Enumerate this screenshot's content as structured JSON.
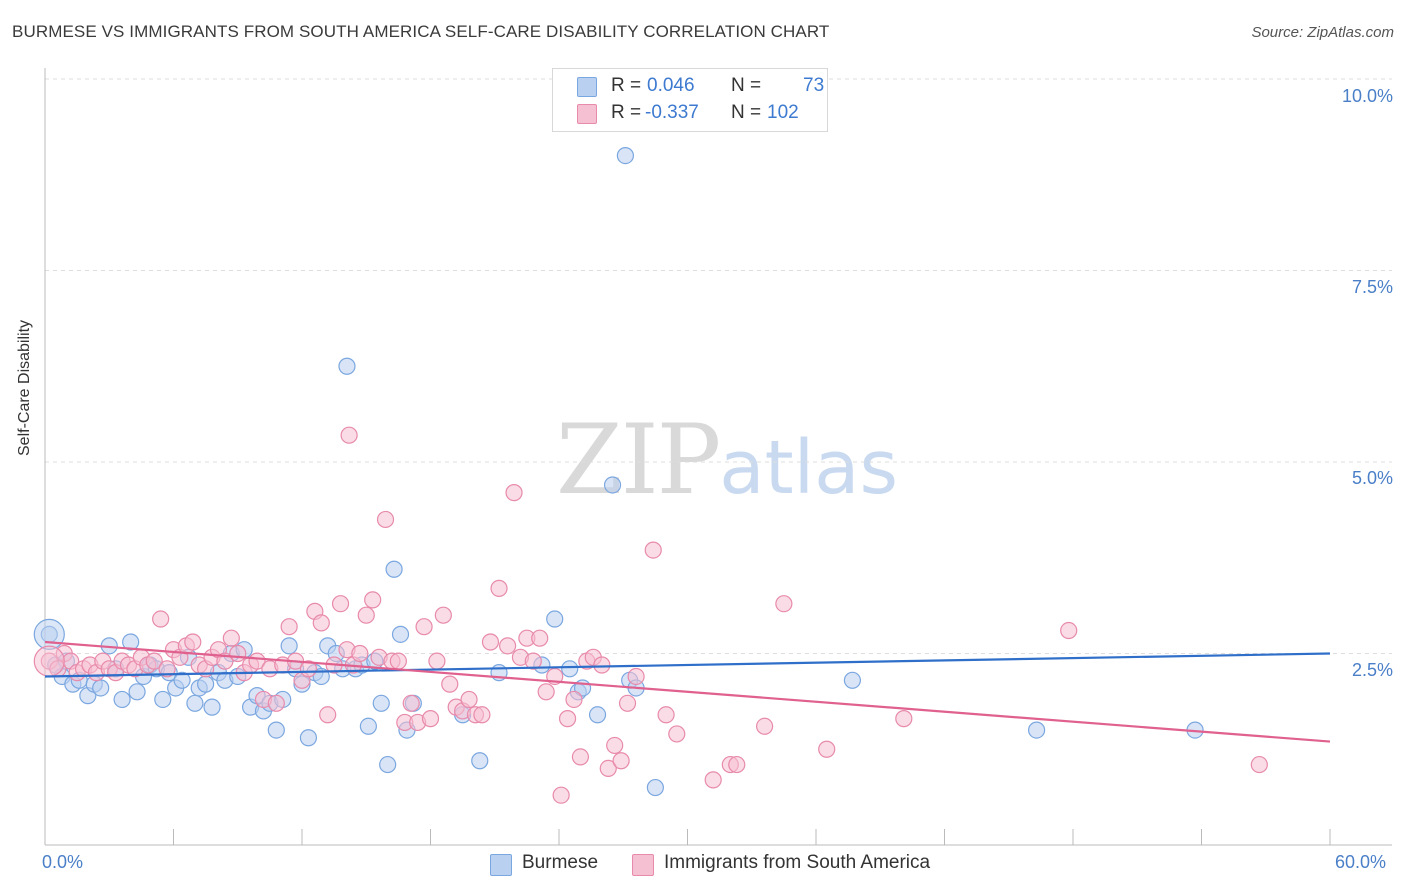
{
  "title": "BURMESE VS IMMIGRANTS FROM SOUTH AMERICA SELF-CARE DISABILITY CORRELATION CHART",
  "source": "Source: ZipAtlas.com",
  "watermark": {
    "zip": "ZIP",
    "atlas": "atlas"
  },
  "colors": {
    "blue": "#7ba7e0",
    "blue_fill": "#b9d0f0",
    "blue_line": "#2f6fc9",
    "pink": "#e88aab",
    "pink_fill": "#f5c0d2",
    "pink_line": "#e0608e",
    "grid": "#dddddd",
    "axis": "#bbbbbb",
    "value_text": "#3d7ad0"
  },
  "legend_top": [
    {
      "r_label": "R =",
      "r_value": "0.046",
      "n_label": "N =",
      "n_value": "73",
      "series": "blue"
    },
    {
      "r_label": "R =",
      "r_value": "-0.337",
      "n_label": "N =",
      "n_value": "102",
      "series": "pink"
    }
  ],
  "legend_bottom": [
    {
      "label": "Burmese",
      "series": "blue"
    },
    {
      "label": "Immigrants from South America",
      "series": "pink"
    }
  ],
  "y_axis_label": "Self-Care Disability",
  "y_ticks": [
    "2.5%",
    "5.0%",
    "7.5%",
    "10.0%"
  ],
  "x_ticks": [
    "0.0%",
    "60.0%"
  ],
  "chart_data": {
    "type": "scatter",
    "title": "BURMESE VS IMMIGRANTS FROM SOUTH AMERICA SELF-CARE DISABILITY CORRELATION CHART",
    "xlabel": "",
    "ylabel": "Self-Care Disability",
    "xlim": [
      0,
      60
    ],
    "ylim": [
      0,
      10
    ],
    "y_gridlines": [
      2.5,
      5.0,
      7.5,
      10.0
    ],
    "series": [
      {
        "name": "Burmese",
        "R": 0.046,
        "N": 73,
        "trend": {
          "x": [
            0,
            60
          ],
          "y": [
            2.2,
            2.5
          ]
        },
        "points": [
          [
            0.2,
            2.75
          ],
          [
            0.5,
            2.35
          ],
          [
            0.8,
            2.2
          ],
          [
            1.0,
            2.4
          ],
          [
            1.3,
            2.1
          ],
          [
            1.6,
            2.15
          ],
          [
            2.0,
            1.95
          ],
          [
            2.3,
            2.1
          ],
          [
            2.6,
            2.05
          ],
          [
            3.0,
            2.6
          ],
          [
            3.3,
            2.3
          ],
          [
            3.6,
            1.9
          ],
          [
            4.0,
            2.65
          ],
          [
            4.3,
            2.0
          ],
          [
            4.6,
            2.2
          ],
          [
            4.9,
            2.35
          ],
          [
            5.2,
            2.3
          ],
          [
            5.5,
            1.9
          ],
          [
            5.8,
            2.25
          ],
          [
            6.1,
            2.05
          ],
          [
            6.4,
            2.15
          ],
          [
            6.7,
            2.45
          ],
          [
            7.0,
            1.85
          ],
          [
            7.2,
            2.05
          ],
          [
            7.5,
            2.1
          ],
          [
            7.8,
            1.8
          ],
          [
            8.1,
            2.25
          ],
          [
            8.4,
            2.15
          ],
          [
            8.7,
            2.5
          ],
          [
            9.0,
            2.2
          ],
          [
            9.3,
            2.55
          ],
          [
            9.6,
            1.8
          ],
          [
            9.9,
            1.95
          ],
          [
            10.2,
            1.75
          ],
          [
            10.5,
            1.85
          ],
          [
            10.8,
            1.5
          ],
          [
            11.1,
            1.9
          ],
          [
            11.4,
            2.6
          ],
          [
            11.7,
            2.3
          ],
          [
            12.0,
            2.1
          ],
          [
            12.3,
            1.4
          ],
          [
            12.6,
            2.25
          ],
          [
            12.9,
            2.2
          ],
          [
            13.2,
            2.6
          ],
          [
            13.6,
            2.5
          ],
          [
            13.9,
            2.3
          ],
          [
            14.1,
            6.25
          ],
          [
            14.5,
            2.3
          ],
          [
            14.8,
            2.35
          ],
          [
            15.1,
            1.55
          ],
          [
            15.4,
            2.4
          ],
          [
            15.7,
            1.85
          ],
          [
            16.0,
            1.05
          ],
          [
            16.3,
            3.6
          ],
          [
            16.6,
            2.75
          ],
          [
            16.9,
            1.5
          ],
          [
            17.2,
            1.85
          ],
          [
            19.5,
            1.7
          ],
          [
            20.3,
            1.1
          ],
          [
            21.2,
            2.25
          ],
          [
            23.2,
            2.35
          ],
          [
            23.8,
            2.95
          ],
          [
            24.5,
            2.3
          ],
          [
            24.9,
            2.0
          ],
          [
            25.1,
            2.05
          ],
          [
            25.8,
            1.7
          ],
          [
            26.5,
            4.7
          ],
          [
            27.1,
            9.0
          ],
          [
            27.3,
            2.15
          ],
          [
            27.6,
            2.05
          ],
          [
            28.5,
            0.75
          ],
          [
            37.7,
            2.15
          ],
          [
            46.3,
            1.5
          ],
          [
            53.7,
            1.5
          ]
        ]
      },
      {
        "name": "Immigrants from South America",
        "R": -0.337,
        "N": 102,
        "trend": {
          "x": [
            0,
            60
          ],
          "y": [
            2.65,
            1.35
          ]
        },
        "points": [
          [
            0.2,
            2.4
          ],
          [
            0.6,
            2.3
          ],
          [
            0.9,
            2.5
          ],
          [
            1.2,
            2.4
          ],
          [
            1.5,
            2.25
          ],
          [
            1.8,
            2.3
          ],
          [
            2.1,
            2.35
          ],
          [
            2.4,
            2.25
          ],
          [
            2.7,
            2.4
          ],
          [
            3.0,
            2.3
          ],
          [
            3.3,
            2.25
          ],
          [
            3.6,
            2.4
          ],
          [
            3.9,
            2.35
          ],
          [
            4.2,
            2.3
          ],
          [
            4.5,
            2.45
          ],
          [
            4.8,
            2.35
          ],
          [
            5.1,
            2.4
          ],
          [
            5.4,
            2.95
          ],
          [
            5.7,
            2.3
          ],
          [
            6.0,
            2.55
          ],
          [
            6.3,
            2.45
          ],
          [
            6.6,
            2.6
          ],
          [
            6.9,
            2.65
          ],
          [
            7.2,
            2.35
          ],
          [
            7.5,
            2.3
          ],
          [
            7.8,
            2.45
          ],
          [
            8.1,
            2.55
          ],
          [
            8.4,
            2.4
          ],
          [
            8.7,
            2.7
          ],
          [
            9.0,
            2.5
          ],
          [
            9.3,
            2.25
          ],
          [
            9.6,
            2.35
          ],
          [
            9.9,
            2.4
          ],
          [
            10.2,
            1.9
          ],
          [
            10.5,
            2.3
          ],
          [
            10.8,
            1.85
          ],
          [
            11.1,
            2.35
          ],
          [
            11.4,
            2.85
          ],
          [
            11.7,
            2.4
          ],
          [
            12.0,
            2.15
          ],
          [
            12.3,
            2.3
          ],
          [
            12.6,
            3.05
          ],
          [
            12.9,
            2.9
          ],
          [
            13.2,
            1.7
          ],
          [
            13.5,
            2.35
          ],
          [
            13.8,
            3.15
          ],
          [
            14.1,
            2.55
          ],
          [
            14.2,
            5.35
          ],
          [
            14.4,
            2.35
          ],
          [
            14.7,
            2.5
          ],
          [
            15.0,
            3.0
          ],
          [
            15.3,
            3.2
          ],
          [
            15.6,
            2.45
          ],
          [
            15.9,
            4.25
          ],
          [
            16.2,
            2.4
          ],
          [
            16.5,
            2.4
          ],
          [
            16.8,
            1.6
          ],
          [
            17.1,
            1.85
          ],
          [
            17.4,
            1.6
          ],
          [
            17.7,
            2.85
          ],
          [
            18.0,
            1.65
          ],
          [
            18.3,
            2.4
          ],
          [
            18.6,
            3.0
          ],
          [
            18.9,
            2.1
          ],
          [
            19.2,
            1.8
          ],
          [
            19.5,
            1.75
          ],
          [
            19.8,
            1.9
          ],
          [
            20.1,
            1.7
          ],
          [
            20.4,
            1.7
          ],
          [
            20.8,
            2.65
          ],
          [
            21.2,
            3.35
          ],
          [
            21.6,
            2.6
          ],
          [
            21.9,
            4.6
          ],
          [
            22.2,
            2.45
          ],
          [
            22.5,
            2.7
          ],
          [
            22.8,
            2.4
          ],
          [
            23.1,
            2.7
          ],
          [
            23.4,
            2.0
          ],
          [
            23.8,
            2.2
          ],
          [
            24.1,
            0.65
          ],
          [
            24.4,
            1.65
          ],
          [
            24.7,
            1.9
          ],
          [
            25.0,
            1.15
          ],
          [
            25.3,
            2.4
          ],
          [
            25.6,
            2.45
          ],
          [
            26.0,
            2.35
          ],
          [
            26.3,
            1.0
          ],
          [
            26.6,
            1.3
          ],
          [
            26.9,
            1.1
          ],
          [
            27.2,
            1.85
          ],
          [
            27.6,
            2.2
          ],
          [
            28.4,
            3.85
          ],
          [
            29.0,
            1.7
          ],
          [
            29.5,
            1.45
          ],
          [
            31.2,
            0.85
          ],
          [
            32.0,
            1.05
          ],
          [
            32.3,
            1.05
          ],
          [
            33.6,
            1.55
          ],
          [
            34.5,
            3.15
          ],
          [
            36.5,
            1.25
          ],
          [
            40.1,
            1.65
          ],
          [
            47.8,
            2.8
          ],
          [
            56.7,
            1.05
          ]
        ]
      }
    ],
    "large_points": [
      {
        "series": "Burmese",
        "point": [
          0.2,
          2.75
        ]
      },
      {
        "series": "Immigrants from South America",
        "point": [
          0.2,
          2.4
        ]
      }
    ]
  }
}
